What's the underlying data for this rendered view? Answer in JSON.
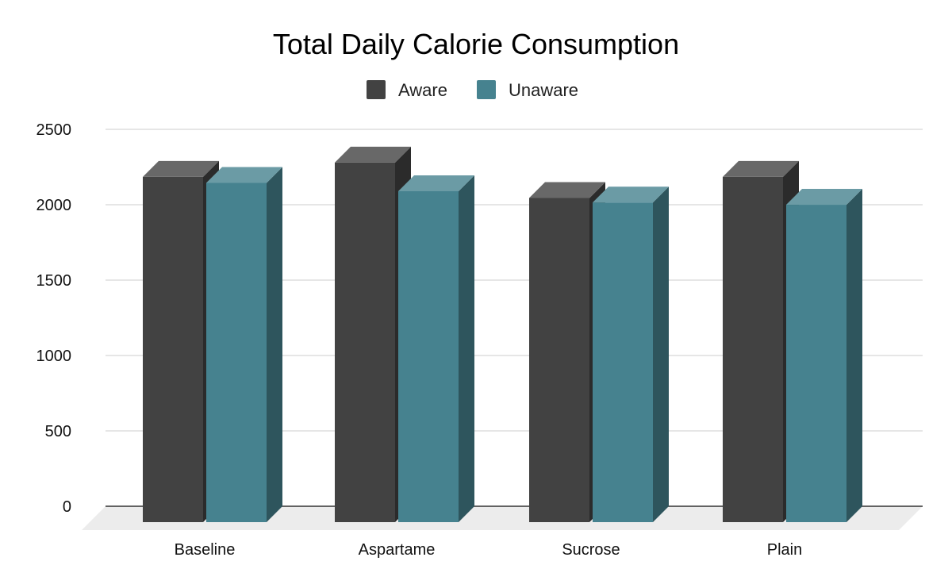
{
  "chart_data": {
    "type": "bar",
    "title": "Total Daily Calorie Consumption",
    "categories": [
      "Baseline",
      "Aspartame",
      "Sucrose",
      "Plain"
    ],
    "series": [
      {
        "name": "Aware",
        "values": [
          2290,
          2385,
          2150,
          2290
        ],
        "color": "#424242"
      },
      {
        "name": "Unaware",
        "values": [
          2250,
          2195,
          2120,
          2105
        ],
        "color": "#46828f"
      }
    ],
    "y_ticks": [
      0,
      500,
      1000,
      1500,
      2000,
      2500
    ],
    "ylim": [
      0,
      2500
    ],
    "grid": true,
    "legend_position": "top-center",
    "style": "3d-column"
  }
}
